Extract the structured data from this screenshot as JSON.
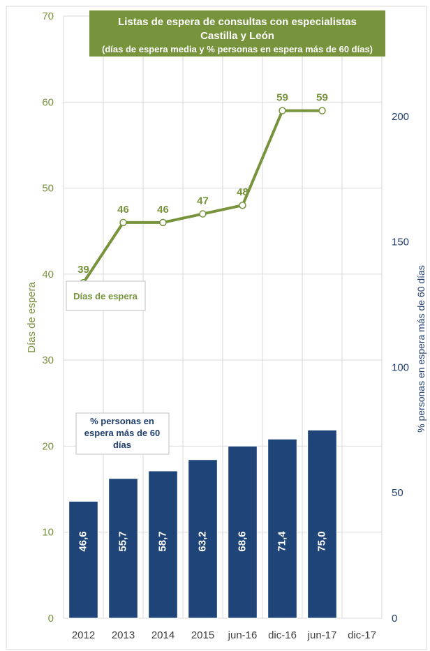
{
  "chart_data": {
    "type": "bar",
    "title": [
      "Listas de espera de consultas con especialistas",
      "Castilla y León",
      "(días de espera media y % personas en espera más de 60 días)"
    ],
    "categories": [
      "2012",
      "2013",
      "2014",
      "2015",
      "jun-16",
      "dic-16",
      "jun-17",
      "dic-17"
    ],
    "series": [
      {
        "name": "% personas en espera más de 60 días",
        "type": "bar",
        "axis": "right",
        "values": [
          46.6,
          55.7,
          58.7,
          63.2,
          68.6,
          71.4,
          75.0,
          null
        ],
        "labels": [
          "46,6",
          "55,7",
          "58,7",
          "63,2",
          "68,6",
          "71,4",
          "75,0",
          ""
        ],
        "color": "#1f4477"
      },
      {
        "name": "Días de espera",
        "type": "line",
        "axis": "left",
        "values": [
          39,
          46,
          46,
          47,
          48,
          59,
          59,
          null
        ],
        "labels": [
          "39",
          "46",
          "46",
          "47",
          "48",
          "59",
          "59",
          ""
        ],
        "color": "#77933c"
      }
    ],
    "y_left": {
      "label": "Días de espera",
      "ylim": [
        0,
        70
      ],
      "ticks": [
        "0",
        "10",
        "20",
        "30",
        "40",
        "50",
        "60",
        "70"
      ]
    },
    "y_right": {
      "label": "% personas en espera más de 60 días",
      "ylim": [
        0,
        240
      ],
      "ticks": [
        "0",
        "50",
        "100",
        "150",
        "200"
      ]
    },
    "grid": "vertical",
    "legend": [
      "Días de espera",
      "% personas en espera más de 60 días"
    ],
    "legend_boxes": {
      "line": [
        "Días de espera"
      ],
      "bar": [
        "% personas en",
        "espera más de 60",
        "días"
      ]
    },
    "colors": {
      "title_bg": "#77933c",
      "line": "#77933c",
      "bar": "#1f4477",
      "grid": "#d9d9d9"
    }
  }
}
